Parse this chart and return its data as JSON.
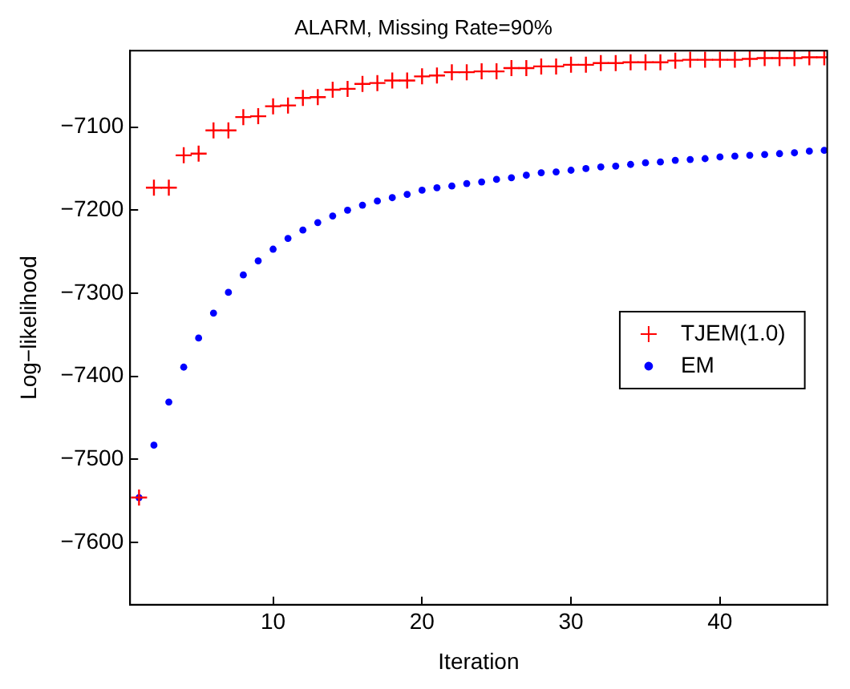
{
  "chart_data": {
    "type": "scatter",
    "title": "ALARM, Missing Rate=90%",
    "xlabel": "Iteration",
    "ylabel": "Log−likelihood",
    "x": [
      1,
      2,
      3,
      4,
      5,
      6,
      7,
      8,
      9,
      10,
      11,
      12,
      13,
      14,
      15,
      16,
      17,
      18,
      19,
      20,
      21,
      22,
      23,
      24,
      25,
      26,
      27,
      28,
      29,
      30,
      31,
      32,
      33,
      34,
      35,
      36,
      37,
      38,
      39,
      40,
      41,
      42,
      43,
      44,
      45,
      46,
      47
    ],
    "series": [
      {
        "name": "TJEM(1.0)",
        "color": "#ff0000",
        "marker": "cross",
        "values": [
          -7546,
          -7173,
          -7173,
          -7134,
          -7132,
          -7104,
          -7104,
          -7088,
          -7087,
          -7075,
          -7074,
          -7065,
          -7064,
          -7055,
          -7054,
          -7048,
          -7047,
          -7044,
          -7044,
          -7039,
          -7038,
          -7034,
          -7034,
          -7033,
          -7033,
          -7029,
          -7029,
          -7027,
          -7027,
          -7025,
          -7025,
          -7023,
          -7023,
          -7022,
          -7022,
          -7022,
          -7020,
          -7019,
          -7019,
          -7019,
          -7019,
          -7018,
          -7017,
          -7017,
          -7017,
          -7016,
          -7016
        ]
      },
      {
        "name": "EM",
        "color": "#0000ff",
        "marker": "circle",
        "values": [
          -7546,
          -7483,
          -7431,
          -7389,
          -7354,
          -7324,
          -7299,
          -7278,
          -7261,
          -7247,
          -7234,
          -7224,
          -7215,
          -7207,
          -7200,
          -7194,
          -7189,
          -7185,
          -7181,
          -7176,
          -7173,
          -7171,
          -7168,
          -7166,
          -7163,
          -7161,
          -7158,
          -7155,
          -7154,
          -7152,
          -7150,
          -7148,
          -7147,
          -7145,
          -7143,
          -7142,
          -7140,
          -7139,
          -7138,
          -7136,
          -7135,
          -7134,
          -7133,
          -7132,
          -7131,
          -7129,
          -7128
        ]
      }
    ],
    "xlim": [
      0.4,
      47.2
    ],
    "xticks": [
      10,
      20,
      30,
      40
    ],
    "ylim": [
      -7675,
      -7008
    ],
    "yticks": [
      -7600,
      -7500,
      -7400,
      -7300,
      -7200,
      -7100
    ],
    "grid": false,
    "legend": "right"
  }
}
